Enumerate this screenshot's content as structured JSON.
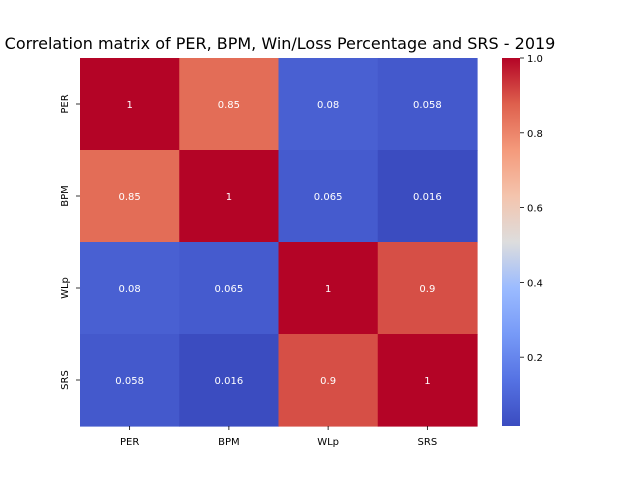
{
  "chart_data": {
    "type": "heatmap",
    "title": "Correlation matrix of PER, BPM, Win/Loss Percentage and SRS - 2019",
    "xlabels": [
      "PER",
      "BPM",
      "WLp",
      "SRS"
    ],
    "ylabels": [
      "PER",
      "BPM",
      "WLp",
      "SRS"
    ],
    "values": [
      [
        1,
        0.85,
        0.08,
        0.058
      ],
      [
        0.85,
        1,
        0.065,
        0.016
      ],
      [
        0.08,
        0.065,
        1,
        0.9
      ],
      [
        0.058,
        0.016,
        0.9,
        1
      ]
    ],
    "annotations": [
      [
        "1",
        "0.85",
        "0.08",
        "0.058"
      ],
      [
        "0.85",
        "1",
        "0.065",
        "0.016"
      ],
      [
        "0.08",
        "0.065",
        "1",
        "0.9"
      ],
      [
        "0.058",
        "0.016",
        "0.9",
        "1"
      ]
    ],
    "colormap": "coolwarm",
    "vmin": 0.016,
    "vmax": 1.0,
    "colorbar_ticks": [
      0.2,
      0.4,
      0.6,
      0.8,
      1.0
    ],
    "colorbar_tick_labels": [
      "0.2",
      "0.4",
      "0.6",
      "0.8",
      "1.0"
    ]
  }
}
